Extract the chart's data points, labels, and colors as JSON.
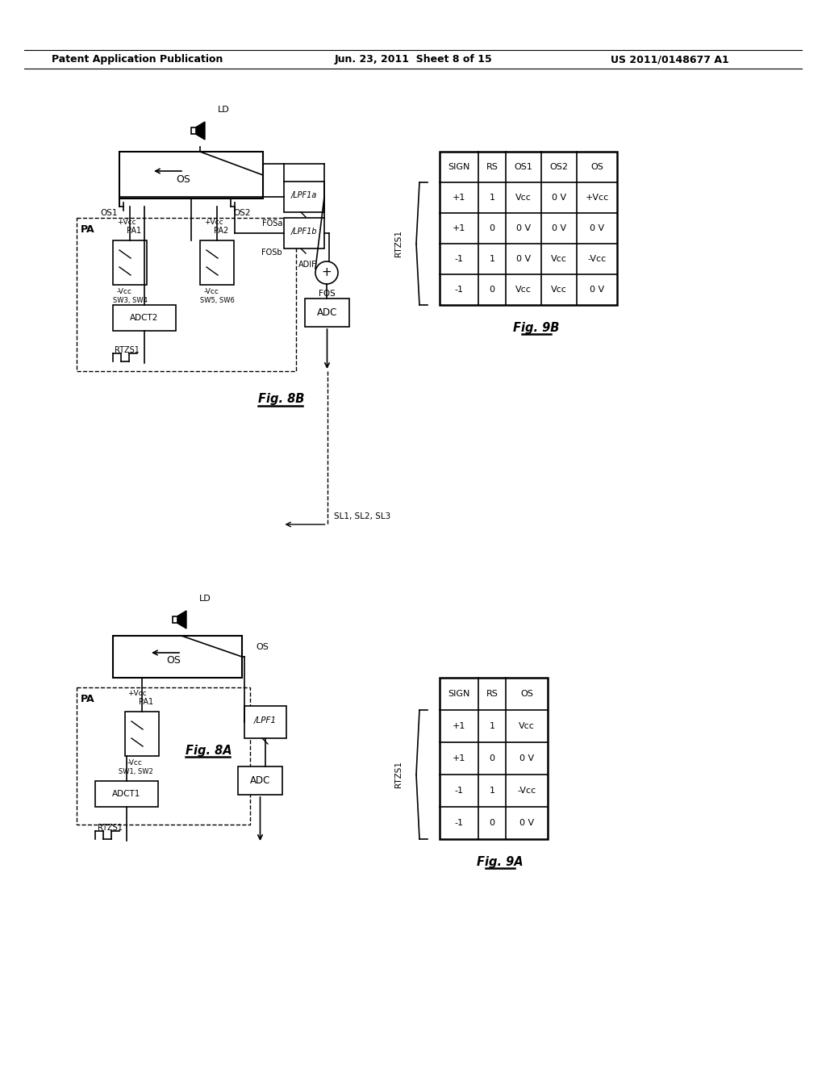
{
  "header_left": "Patent Application Publication",
  "header_center": "Jun. 23, 2011  Sheet 8 of 15",
  "header_right": "US 2011/0148677 A1",
  "fig8b_label": "Fig. 8B",
  "fig8a_label": "Fig. 8A",
  "fig9b_label": "Fig. 9B",
  "fig9a_label": "Fig. 9A",
  "table9b": {
    "headers": [
      "SIGN",
      "RS",
      "OS1",
      "OS2",
      "OS"
    ],
    "rows": [
      [
        "+1",
        "1",
        "Vcc",
        "0 V",
        "+Vcc"
      ],
      [
        "+1",
        "0",
        "0 V",
        "0 V",
        "0 V"
      ],
      [
        "-1",
        "1",
        "0 V",
        "Vcc",
        "-Vcc"
      ],
      [
        "-1",
        "0",
        "Vcc",
        "Vcc",
        "0 V"
      ]
    ],
    "note": "RTZS1"
  },
  "table9a": {
    "headers": [
      "SIGN",
      "RS",
      "OS"
    ],
    "rows": [
      [
        "+1",
        "1",
        "Vcc"
      ],
      [
        "+1",
        "0",
        "0 V"
      ],
      [
        "-1",
        "1",
        "-Vcc"
      ],
      [
        "-1",
        "0",
        "0 V"
      ]
    ],
    "note": "RTZS1"
  }
}
